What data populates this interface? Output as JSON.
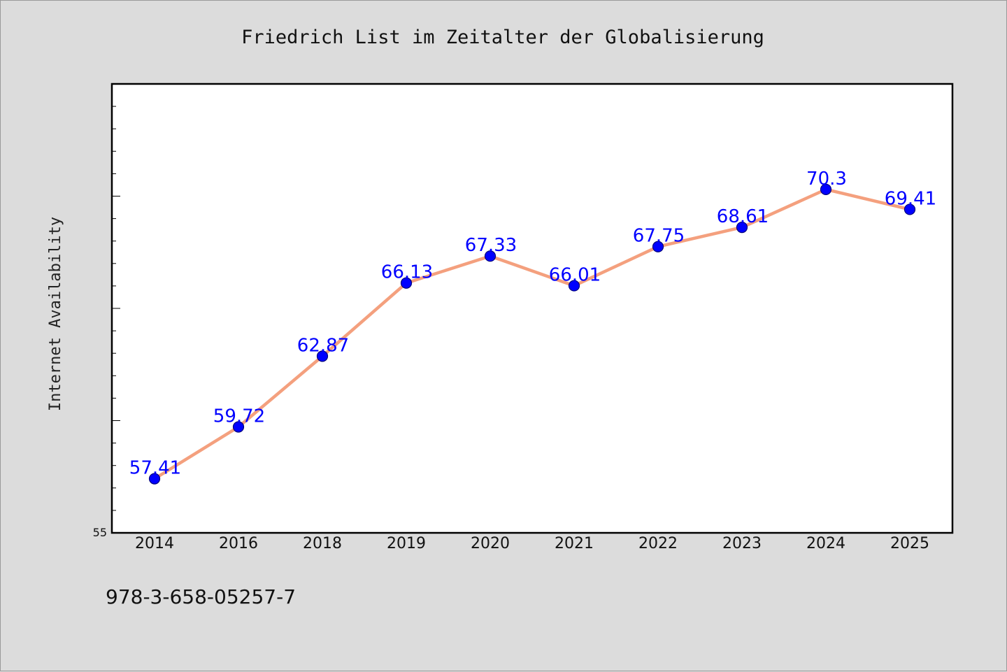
{
  "chart_data": {
    "type": "line",
    "title": "Friedrich List im Zeitalter der Globalisierung",
    "ylabel": "Internet Availability",
    "xlabel": "",
    "categories": [
      "2014",
      "2016",
      "2018",
      "2019",
      "2020",
      "2021",
      "2022",
      "2023",
      "2024",
      "2025"
    ],
    "series": [
      {
        "values": [
          57.41,
          59.72,
          62.87,
          66.13,
          67.33,
          66.01,
          67.75,
          68.61,
          70.3,
          69.41
        ],
        "labels": [
          "57.41",
          "59.72",
          "62.87",
          "66.13",
          "67.33",
          "66.01",
          "67.75",
          "68.61",
          "70.3",
          "69.41"
        ]
      }
    ],
    "ylim": [
      55,
      75
    ],
    "y_tick_labels": [
      "55"
    ],
    "grid": false,
    "legend": "none",
    "colors": {
      "line": "#f4a07e",
      "marker": "#0000ff",
      "marker_edge": "#00007a",
      "data_label": "#0000ff",
      "plot_background": "#ffffff",
      "figure_background": "#dcdcdc"
    }
  },
  "footer": {
    "isbn": "978-3-658-05257-7"
  }
}
